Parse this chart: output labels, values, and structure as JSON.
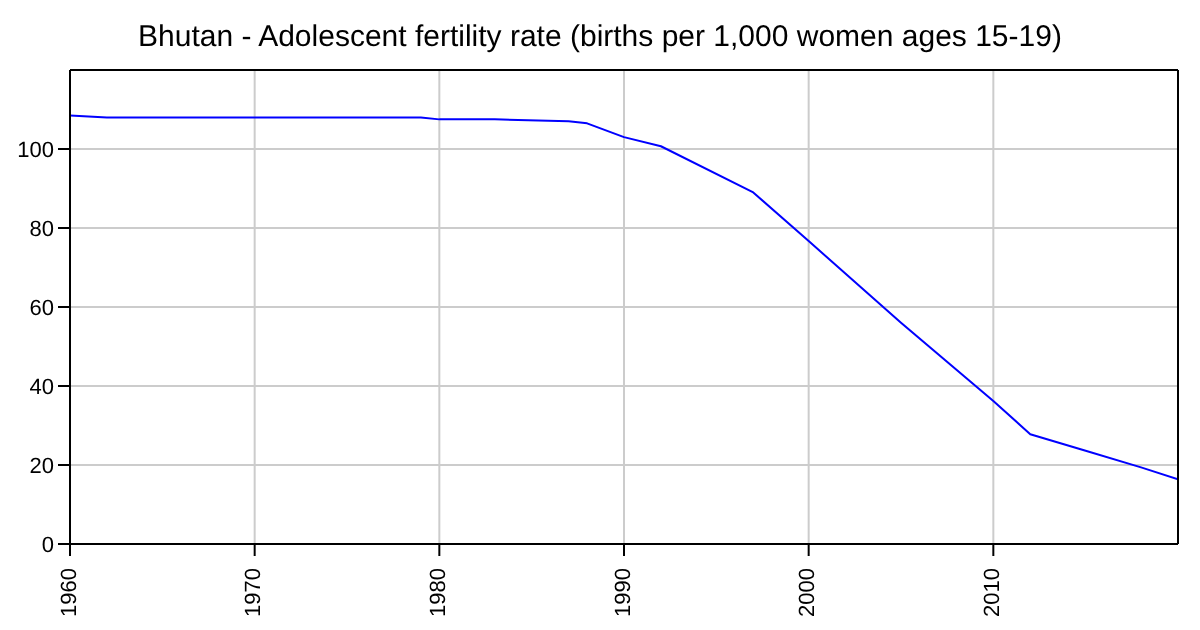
{
  "chart_data": {
    "type": "line",
    "title": "Bhutan - Adolescent fertility rate (births per 1,000 women ages 15-19)",
    "x": [
      1960,
      1962,
      1979,
      1980,
      1983,
      1987,
      1988,
      1990,
      1992,
      1997,
      2000,
      2005,
      2010,
      2012,
      2015,
      2018,
      2020
    ],
    "series": [
      {
        "color": "#0000ff",
        "values": [
          108.5,
          108,
          108,
          107.5,
          107.5,
          107,
          106.5,
          103,
          100.7,
          89,
          76.7,
          56,
          36.2,
          27.8,
          23.6,
          19.4,
          16.4
        ]
      }
    ],
    "xlim": [
      1960,
      2020
    ],
    "xticks": [
      1960,
      1970,
      1980,
      1990,
      2000,
      2010
    ],
    "ylim": [
      0,
      120
    ],
    "yticks": [
      0,
      20,
      40,
      60,
      80,
      100
    ],
    "grid": true,
    "marker": "none",
    "line_style": "solid"
  }
}
